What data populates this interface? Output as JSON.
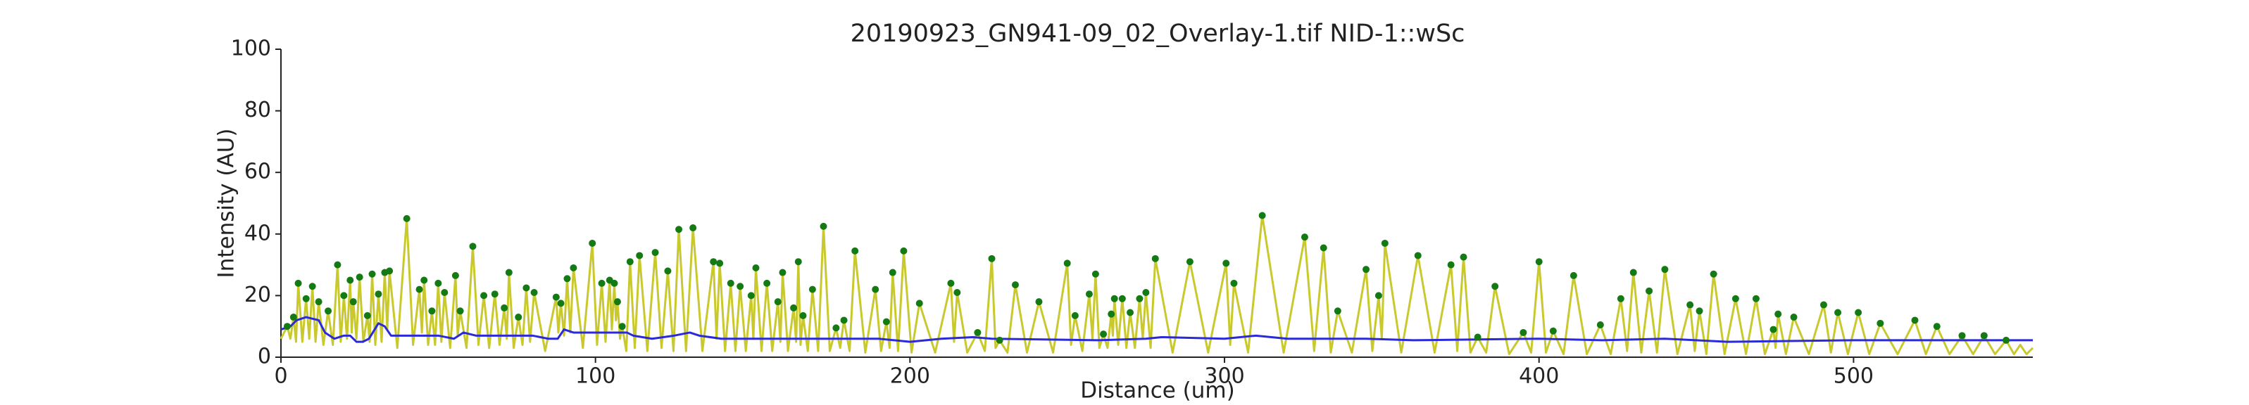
{
  "chart_data": {
    "type": "line",
    "title": "20190923_GN941-09_02_Overlay-1.tif NID-1::wSc",
    "xlabel": "Distance (um)",
    "ylabel": "Intensity (AU)",
    "xlim": [
      0,
      557
    ],
    "ylim": [
      0,
      100
    ],
    "xticks": [
      0,
      100,
      200,
      300,
      400,
      500
    ],
    "yticks": [
      0,
      20,
      40,
      60,
      80,
      100
    ],
    "grid": false,
    "series": [
      {
        "type": "line",
        "color": "#c9c92e",
        "x": [
          0,
          2,
          3,
          4,
          4.8,
          5.5,
          6.8,
          8,
          9,
          10,
          11,
          12,
          13.5,
          15,
          16.5,
          18,
          19,
          20,
          21,
          22,
          22.5,
          23,
          24,
          25,
          26.2,
          27.5,
          28.2,
          29,
          30,
          31,
          32,
          33,
          33.8,
          34.5,
          37,
          40,
          42,
          44,
          44.8,
          45.5,
          46.8,
          48,
          49,
          50,
          51,
          52,
          53.8,
          55.5,
          56.2,
          57,
          59,
          61,
          62.8,
          64.5,
          66.2,
          68,
          69.5,
          71,
          71.8,
          72.5,
          74,
          75.5,
          76.8,
          78,
          79.2,
          80.5,
          84,
          87.5,
          88.2,
          89,
          90,
          91,
          92,
          93,
          96,
          99,
          100.5,
          102,
          103.2,
          104.5,
          105.2,
          106,
          106.5,
          107,
          107.8,
          108.5,
          109.8,
          111,
          112.5,
          114,
          116.5,
          119,
          121,
          123,
          124.8,
          126.5,
          128.8,
          131,
          134,
          137.5,
          138.5,
          139.5,
          141.2,
          143,
          144.5,
          146,
          147.8,
          149.5,
          150.2,
          151,
          152.8,
          154.5,
          156.2,
          158,
          158.8,
          159.5,
          161.2,
          163,
          163.8,
          164.5,
          165.2,
          166,
          167.5,
          169,
          170.8,
          172.5,
          174.5,
          176.5,
          177.8,
          179,
          180.8,
          182.5,
          185.8,
          189,
          190.8,
          192.5,
          193.5,
          194.5,
          196.2,
          198,
          200.5,
          203,
          208,
          213,
          214,
          215,
          218.2,
          221.5,
          223.8,
          226,
          227.2,
          228.5,
          231,
          233.5,
          237.2,
          241,
          245.5,
          250,
          251.2,
          252.5,
          254.8,
          257,
          258,
          259,
          260.2,
          261.5,
          262.8,
          264,
          264.5,
          265,
          266.2,
          267.5,
          268.8,
          270,
          271.5,
          273,
          274,
          275,
          276.5,
          278,
          283.5,
          289,
          294.8,
          300.5,
          301.8,
          303,
          307.5,
          312,
          318.8,
          325.5,
          328.5,
          331.5,
          333.8,
          336,
          340.5,
          345,
          347,
          349,
          350,
          351,
          356.2,
          361.5,
          366.8,
          372,
          374,
          376,
          378.2,
          380.5,
          383.2,
          386,
          390.5,
          395,
          397.5,
          400,
          402.2,
          404.5,
          407.8,
          411,
          415.2,
          419.5,
          422.8,
          426,
          428,
          430,
          432.5,
          435,
          437.5,
          440,
          444,
          448,
          449.5,
          451,
          453.2,
          455.5,
          459,
          462.5,
          465.8,
          469,
          471.8,
          474.5,
          475.2,
          476,
          478.5,
          481,
          485.8,
          490.5,
          492.8,
          495,
          498.2,
          501.5,
          505,
          508.5,
          514,
          519.5,
          523,
          526.5,
          530.5,
          534.5,
          538,
          541.5,
          545,
          548.5,
          551,
          553,
          555,
          557
        ],
        "values": [
          6,
          10,
          6,
          13,
          5,
          24,
          5,
          19,
          6,
          23,
          5,
          18,
          4,
          15,
          4,
          30,
          5,
          20,
          6,
          25,
          8,
          18,
          6,
          26,
          5,
          13.5,
          5,
          27,
          4,
          20.5,
          5,
          27.5,
          9,
          28,
          3,
          45,
          4,
          22,
          8,
          25,
          4,
          15,
          4,
          24,
          5,
          21,
          3,
          26.5,
          7,
          15,
          3,
          36,
          4,
          20,
          3,
          20.5,
          4,
          16,
          6,
          27.5,
          3,
          13,
          4,
          22.5,
          5,
          21,
          2,
          19.5,
          8,
          17.5,
          7,
          25.5,
          8,
          29,
          3,
          37,
          4,
          24,
          5,
          25,
          9,
          24,
          12,
          18,
          6,
          10,
          2,
          31,
          3,
          33,
          2,
          34,
          3,
          28,
          2,
          41.5,
          2,
          42,
          2,
          31,
          6,
          30.5,
          2,
          24,
          2,
          23,
          2,
          20,
          6,
          29,
          2,
          24,
          2,
          18,
          5,
          27.5,
          2,
          16,
          5,
          31,
          4,
          13.5,
          2,
          22,
          2,
          42.5,
          2,
          9.5,
          3,
          12,
          2,
          34.5,
          1.5,
          22,
          2,
          11.5,
          3,
          27.5,
          2,
          34.5,
          1.5,
          17.5,
          1.5,
          24,
          5,
          21,
          1.5,
          8,
          2,
          32,
          3,
          5.5,
          1.5,
          23.5,
          1.5,
          18,
          1.5,
          30.5,
          4,
          13.5,
          2,
          20.5,
          6,
          27,
          3,
          7.5,
          3,
          14,
          7,
          19,
          4,
          19,
          3,
          14.5,
          3,
          19,
          6,
          21,
          3,
          32,
          1.5,
          31,
          1.5,
          30.5,
          4,
          24,
          1.5,
          46,
          1.5,
          39,
          2,
          35.5,
          1.5,
          15,
          1.5,
          28.5,
          2,
          20,
          6,
          37,
          1.5,
          33,
          1.5,
          30,
          2,
          32.5,
          1.5,
          6.5,
          1.5,
          23,
          1,
          8,
          1.5,
          31,
          1.5,
          8.5,
          1,
          26.5,
          1,
          10.5,
          1,
          19,
          2,
          27.5,
          1.5,
          21.5,
          1.5,
          28.5,
          1,
          17,
          2,
          15,
          1,
          27,
          1,
          19,
          1,
          19,
          1,
          9,
          3,
          14,
          1,
          13,
          1,
          17,
          1.5,
          14.5,
          1,
          14.5,
          1,
          11,
          1,
          12,
          1,
          10,
          1,
          7,
          1,
          7,
          1,
          5.5,
          1,
          4,
          1,
          3
        ]
      },
      {
        "type": "line",
        "color": "#2a2ad8",
        "x": [
          0,
          3,
          5,
          8,
          12,
          14,
          17,
          20,
          22,
          24,
          26,
          28,
          31,
          33,
          35,
          50,
          55,
          58,
          62,
          80,
          85,
          88,
          90,
          93,
          110,
          112,
          118,
          125,
          130,
          133,
          140,
          190,
          200,
          210,
          220,
          226,
          260,
          275,
          280,
          300,
          310,
          320,
          330,
          345,
          360,
          400,
          420,
          440,
          460,
          500,
          557
        ],
        "values": [
          9,
          10,
          12,
          13,
          12,
          8,
          6,
          7,
          7,
          5,
          5,
          6,
          11,
          10,
          7,
          7,
          6,
          8,
          7,
          7,
          6,
          6,
          9,
          8,
          8,
          7,
          6,
          7,
          8,
          7,
          6,
          6,
          5,
          6,
          6.5,
          6,
          5.5,
          6,
          6.5,
          6,
          7,
          6,
          6,
          6,
          5.5,
          6,
          5.5,
          6,
          5,
          5.5,
          5.5
        ]
      },
      {
        "type": "scatter",
        "color": "#147a14",
        "x": [
          2,
          4,
          5.5,
          8,
          10,
          12,
          15,
          18,
          20,
          22,
          23,
          25,
          27.5,
          29,
          31,
          33,
          34.5,
          40,
          44,
          45.5,
          48,
          50,
          52,
          55.5,
          57,
          61,
          64.5,
          68,
          71,
          72.5,
          75.5,
          78,
          80.5,
          87.5,
          89,
          91,
          93,
          99,
          102,
          104.5,
          106,
          107,
          108.5,
          111,
          114,
          119,
          123,
          126.5,
          131,
          137.5,
          139.5,
          143,
          146,
          149.5,
          151,
          154.5,
          158,
          159.5,
          163,
          164.5,
          166,
          169,
          172.5,
          176.5,
          179,
          182.5,
          189,
          192.5,
          194.5,
          198,
          203,
          213,
          215,
          221.5,
          226,
          228.5,
          233.5,
          241,
          250,
          252.5,
          257,
          259,
          261.5,
          264,
          265,
          267.5,
          270,
          273,
          275,
          278,
          289,
          300.5,
          303,
          312,
          325.5,
          331.5,
          336,
          345,
          349,
          351,
          361.5,
          372,
          376,
          380.5,
          386,
          395,
          400,
          404.5,
          411,
          419.5,
          426,
          430,
          435,
          440,
          448,
          451,
          455.5,
          462.5,
          469,
          474.5,
          476,
          481,
          490.5,
          495,
          501.5,
          508.5,
          519.5,
          526.5,
          534.5,
          541.5,
          548.5
        ],
        "values": [
          10,
          13,
          24,
          19,
          23,
          18,
          15,
          30,
          20,
          25,
          18,
          26,
          13.5,
          27,
          20.5,
          27.5,
          28,
          45,
          22,
          25,
          15,
          24,
          21,
          26.5,
          15,
          36,
          20,
          20.5,
          16,
          27.5,
          13,
          22.5,
          21,
          19.5,
          17.5,
          25.5,
          29,
          37,
          24,
          25,
          24,
          18,
          10,
          31,
          33,
          34,
          28,
          41.5,
          42,
          31,
          30.5,
          24,
          23,
          20,
          29,
          24,
          18,
          27.5,
          16,
          31,
          13.5,
          22,
          42.5,
          9.5,
          12,
          34.5,
          22,
          11.5,
          27.5,
          34.5,
          17.5,
          24,
          21,
          8,
          32,
          5.5,
          23.5,
          18,
          30.5,
          13.5,
          20.5,
          27,
          7.5,
          14,
          19,
          19,
          14.5,
          19,
          21,
          32,
          31,
          30.5,
          24,
          46,
          39,
          35.5,
          15,
          28.5,
          20,
          37,
          33,
          30,
          32.5,
          6.5,
          23,
          8,
          31,
          8.5,
          26.5,
          10.5,
          19,
          27.5,
          21.5,
          28.5,
          17,
          15,
          27,
          19,
          19,
          9,
          14,
          13,
          17,
          14.5,
          14.5,
          11,
          12,
          10,
          7,
          7,
          5.5
        ]
      }
    ]
  }
}
